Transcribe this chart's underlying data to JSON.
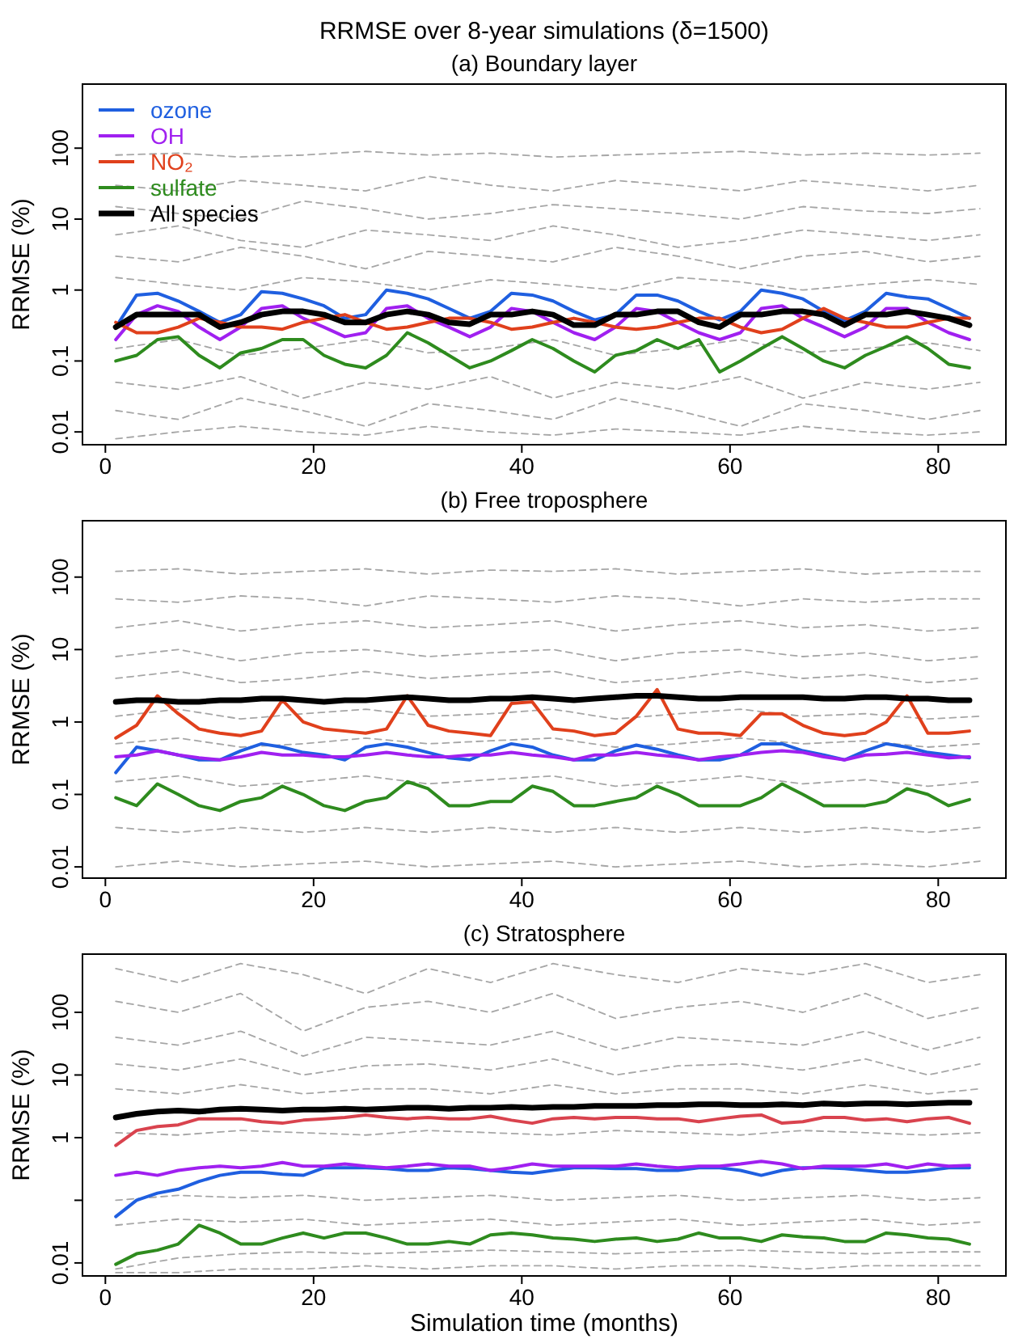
{
  "chart_data": [
    {
      "type": "line",
      "title": "RRMSE over 8-year simulations (δ=1500)",
      "subtitle": "(a) Boundary layer",
      "ylabel": "RRMSE (%)",
      "log": true,
      "legend": "top left",
      "line_style": "solid",
      "xlim": [
        -2.2,
        86.5
      ],
      "xticks": [
        0,
        20,
        40,
        60,
        80
      ],
      "ylim": [
        0.0066,
        800
      ],
      "yticks": [
        0.01,
        0.1,
        1,
        10,
        100
      ],
      "x": [
        1,
        3,
        5,
        7,
        9,
        11,
        13,
        15,
        17,
        19,
        21,
        23,
        25,
        27,
        29,
        31,
        33,
        35,
        37,
        39,
        41,
        43,
        45,
        47,
        49,
        51,
        53,
        55,
        57,
        59,
        61,
        63,
        65,
        67,
        69,
        71,
        73,
        75,
        77,
        79,
        81,
        83
      ],
      "series": [
        {
          "color": "#a6a6a6",
          "line_style": "dashed",
          "x": [
            1,
            7,
            13,
            19,
            25,
            31,
            37,
            43,
            49,
            55,
            61,
            67,
            73,
            79,
            84
          ],
          "values": [
            80,
            85,
            75,
            80,
            90,
            80,
            85,
            75,
            80,
            85,
            90,
            80,
            85,
            80,
            85
          ]
        },
        {
          "color": "#a6a6a6",
          "line_style": "dashed",
          "x": [
            1,
            7,
            13,
            19,
            25,
            31,
            37,
            43,
            49,
            55,
            61,
            67,
            73,
            79,
            84
          ],
          "values": [
            30,
            25,
            35,
            30,
            25,
            40,
            30,
            25,
            35,
            30,
            25,
            35,
            30,
            25,
            30
          ]
        },
        {
          "color": "#a6a6a6",
          "line_style": "dashed",
          "x": [
            1,
            7,
            13,
            19,
            25,
            31,
            37,
            43,
            49,
            55,
            61,
            67,
            73,
            79,
            84
          ],
          "values": [
            15,
            12,
            10,
            18,
            14,
            10,
            12,
            16,
            14,
            12,
            10,
            15,
            13,
            12,
            14
          ]
        },
        {
          "color": "#a6a6a6",
          "line_style": "dashed",
          "x": [
            1,
            7,
            13,
            19,
            25,
            31,
            37,
            43,
            49,
            55,
            61,
            67,
            73,
            79,
            84
          ],
          "values": [
            6,
            8,
            5,
            4,
            7,
            6,
            5,
            8,
            6,
            4,
            5,
            7,
            6,
            5,
            6
          ]
        },
        {
          "color": "#a6a6a6",
          "line_style": "dashed",
          "x": [
            1,
            7,
            13,
            19,
            25,
            31,
            37,
            43,
            49,
            55,
            61,
            67,
            73,
            79,
            84
          ],
          "values": [
            3,
            2.5,
            4,
            3,
            2,
            3.5,
            3,
            2.5,
            4,
            3,
            2,
            3,
            3.5,
            2.5,
            3
          ]
        },
        {
          "color": "#a6a6a6",
          "line_style": "dashed",
          "x": [
            1,
            7,
            13,
            19,
            25,
            31,
            37,
            43,
            49,
            55,
            61,
            67,
            73,
            79,
            84
          ],
          "values": [
            1.5,
            1.2,
            1,
            1.5,
            1.3,
            1,
            1.4,
            1.2,
            1,
            1.5,
            1.3,
            1,
            1.2,
            1.4,
            1.2
          ]
        },
        {
          "color": "#a6a6a6",
          "line_style": "dashed",
          "x": [
            1,
            7,
            13,
            19,
            25,
            31,
            37,
            43,
            49,
            55,
            61,
            67,
            73,
            79,
            84
          ],
          "values": [
            0.15,
            0.2,
            0.12,
            0.15,
            0.2,
            0.13,
            0.15,
            0.2,
            0.12,
            0.15,
            0.2,
            0.13,
            0.15,
            0.18,
            0.14
          ]
        },
        {
          "color": "#a6a6a6",
          "line_style": "dashed",
          "x": [
            1,
            7,
            13,
            19,
            25,
            31,
            37,
            43,
            49,
            55,
            61,
            67,
            73,
            79,
            84
          ],
          "values": [
            0.05,
            0.04,
            0.06,
            0.03,
            0.05,
            0.04,
            0.06,
            0.03,
            0.05,
            0.04,
            0.06,
            0.03,
            0.05,
            0.04,
            0.05
          ]
        },
        {
          "color": "#a6a6a6",
          "line_style": "dashed",
          "x": [
            1,
            7,
            13,
            19,
            25,
            31,
            37,
            43,
            49,
            55,
            61,
            67,
            73,
            79,
            84
          ],
          "values": [
            0.02,
            0.015,
            0.03,
            0.02,
            0.012,
            0.025,
            0.02,
            0.015,
            0.03,
            0.02,
            0.012,
            0.025,
            0.02,
            0.015,
            0.02
          ]
        },
        {
          "color": "#a6a6a6",
          "line_style": "dashed",
          "x": [
            1,
            7,
            13,
            19,
            25,
            31,
            37,
            43,
            49,
            55,
            61,
            67,
            73,
            79,
            84
          ],
          "values": [
            0.008,
            0.01,
            0.012,
            0.01,
            0.009,
            0.012,
            0.01,
            0.009,
            0.011,
            0.01,
            0.009,
            0.012,
            0.01,
            0.009,
            0.01
          ]
        },
        {
          "name": "ozone",
          "color": "#1f5fe0",
          "values": [
            0.3,
            0.85,
            0.9,
            0.7,
            0.5,
            0.35,
            0.45,
            0.95,
            0.9,
            0.75,
            0.6,
            0.4,
            0.45,
            1.0,
            0.9,
            0.75,
            0.55,
            0.4,
            0.5,
            0.9,
            0.85,
            0.7,
            0.5,
            0.38,
            0.45,
            0.85,
            0.85,
            0.7,
            0.5,
            0.38,
            0.5,
            1.0,
            0.9,
            0.75,
            0.5,
            0.37,
            0.5,
            0.9,
            0.8,
            0.75,
            0.55,
            0.4
          ]
        },
        {
          "name": "OH",
          "color": "#a020f0",
          "values": [
            0.2,
            0.45,
            0.6,
            0.5,
            0.3,
            0.2,
            0.3,
            0.55,
            0.6,
            0.4,
            0.3,
            0.22,
            0.25,
            0.55,
            0.6,
            0.4,
            0.3,
            0.22,
            0.3,
            0.55,
            0.5,
            0.35,
            0.25,
            0.2,
            0.3,
            0.55,
            0.5,
            0.35,
            0.25,
            0.2,
            0.25,
            0.55,
            0.6,
            0.4,
            0.3,
            0.22,
            0.3,
            0.55,
            0.55,
            0.35,
            0.25,
            0.2
          ]
        },
        {
          "name": "NO₂",
          "color": "#e0401c",
          "values": [
            0.35,
            0.25,
            0.25,
            0.3,
            0.4,
            0.35,
            0.3,
            0.3,
            0.28,
            0.35,
            0.4,
            0.45,
            0.35,
            0.28,
            0.3,
            0.35,
            0.4,
            0.4,
            0.35,
            0.28,
            0.3,
            0.35,
            0.4,
            0.35,
            0.3,
            0.28,
            0.3,
            0.35,
            0.4,
            0.4,
            0.3,
            0.25,
            0.28,
            0.4,
            0.55,
            0.4,
            0.35,
            0.3,
            0.3,
            0.35,
            0.4,
            0.4
          ]
        },
        {
          "name": "sulfate",
          "color": "#2e8b1e",
          "values": [
            0.1,
            0.12,
            0.2,
            0.22,
            0.12,
            0.08,
            0.13,
            0.15,
            0.2,
            0.2,
            0.12,
            0.09,
            0.08,
            0.12,
            0.25,
            0.18,
            0.12,
            0.08,
            0.1,
            0.14,
            0.2,
            0.15,
            0.1,
            0.07,
            0.12,
            0.14,
            0.2,
            0.15,
            0.2,
            0.07,
            0.1,
            0.15,
            0.22,
            0.15,
            0.1,
            0.08,
            0.12,
            0.16,
            0.22,
            0.15,
            0.09,
            0.08
          ]
        },
        {
          "name": "All species",
          "color": "#000000",
          "values": [
            0.3,
            0.45,
            0.45,
            0.45,
            0.45,
            0.3,
            0.35,
            0.45,
            0.5,
            0.5,
            0.45,
            0.35,
            0.35,
            0.45,
            0.5,
            0.45,
            0.35,
            0.33,
            0.45,
            0.45,
            0.5,
            0.45,
            0.32,
            0.32,
            0.45,
            0.45,
            0.5,
            0.5,
            0.35,
            0.3,
            0.45,
            0.45,
            0.5,
            0.5,
            0.45,
            0.32,
            0.45,
            0.45,
            0.5,
            0.45,
            0.4,
            0.32
          ]
        }
      ]
    },
    {
      "type": "line",
      "title": "(b) Free troposphere",
      "ylabel": "RRMSE (%)",
      "log": true,
      "line_style": "solid",
      "xlim": [
        -2.2,
        86.5
      ],
      "xticks": [
        0,
        20,
        40,
        60,
        80
      ],
      "ylim": [
        0.007,
        600
      ],
      "yticks": [
        0.01,
        0.1,
        1,
        10,
        100
      ],
      "x": [
        1,
        3,
        5,
        7,
        9,
        11,
        13,
        15,
        17,
        19,
        21,
        23,
        25,
        27,
        29,
        31,
        33,
        35,
        37,
        39,
        41,
        43,
        45,
        47,
        49,
        51,
        53,
        55,
        57,
        59,
        61,
        63,
        65,
        67,
        69,
        71,
        73,
        75,
        77,
        79,
        81,
        83
      ],
      "series": [
        {
          "color": "#a6a6a6",
          "line_style": "dashed",
          "x": [
            1,
            7,
            13,
            19,
            25,
            31,
            37,
            43,
            49,
            55,
            61,
            67,
            73,
            79,
            84
          ],
          "values": [
            120,
            130,
            110,
            120,
            130,
            110,
            125,
            120,
            130,
            110,
            120,
            130,
            110,
            120,
            120
          ]
        },
        {
          "color": "#a6a6a6",
          "line_style": "dashed",
          "x": [
            1,
            7,
            13,
            19,
            25,
            31,
            37,
            43,
            49,
            55,
            61,
            67,
            73,
            79,
            84
          ],
          "values": [
            50,
            45,
            55,
            50,
            40,
            55,
            50,
            45,
            55,
            50,
            40,
            50,
            45,
            50,
            50
          ]
        },
        {
          "color": "#a6a6a6",
          "line_style": "dashed",
          "x": [
            1,
            7,
            13,
            19,
            25,
            31,
            37,
            43,
            49,
            55,
            61,
            67,
            73,
            79,
            84
          ],
          "values": [
            20,
            25,
            18,
            22,
            25,
            20,
            22,
            25,
            18,
            22,
            25,
            20,
            22,
            18,
            20
          ]
        },
        {
          "color": "#a6a6a6",
          "line_style": "dashed",
          "x": [
            1,
            7,
            13,
            19,
            25,
            31,
            37,
            43,
            49,
            55,
            61,
            67,
            73,
            79,
            84
          ],
          "values": [
            8,
            10,
            7,
            9,
            10,
            8,
            9,
            10,
            7,
            9,
            10,
            8,
            9,
            7,
            8
          ]
        },
        {
          "color": "#a6a6a6",
          "line_style": "dashed",
          "x": [
            1,
            7,
            13,
            19,
            25,
            31,
            37,
            43,
            49,
            55,
            61,
            67,
            73,
            79,
            84
          ],
          "values": [
            4,
            5,
            3.5,
            4,
            5,
            4,
            4.5,
            5,
            3.5,
            4,
            5,
            4,
            4.5,
            3.5,
            4
          ]
        },
        {
          "color": "#a6a6a6",
          "line_style": "dashed",
          "x": [
            1,
            7,
            13,
            19,
            25,
            31,
            37,
            43,
            49,
            55,
            61,
            67,
            73,
            79,
            84
          ],
          "values": [
            1.2,
            1.5,
            1.1,
            1.3,
            1.5,
            1.2,
            1.3,
            1.5,
            1.1,
            1.3,
            1.5,
            1.2,
            1.3,
            1.1,
            1.2
          ]
        },
        {
          "color": "#a6a6a6",
          "line_style": "dashed",
          "x": [
            1,
            7,
            13,
            19,
            25,
            31,
            37,
            43,
            49,
            55,
            61,
            67,
            73,
            79,
            84
          ],
          "values": [
            0.5,
            0.6,
            0.45,
            0.5,
            0.6,
            0.5,
            0.55,
            0.6,
            0.45,
            0.5,
            0.6,
            0.5,
            0.55,
            0.45,
            0.5
          ]
        },
        {
          "color": "#a6a6a6",
          "line_style": "dashed",
          "x": [
            1,
            7,
            13,
            19,
            25,
            31,
            37,
            43,
            49,
            55,
            61,
            67,
            73,
            79,
            84
          ],
          "values": [
            0.15,
            0.18,
            0.13,
            0.15,
            0.18,
            0.14,
            0.16,
            0.18,
            0.13,
            0.15,
            0.18,
            0.14,
            0.16,
            0.13,
            0.15
          ]
        },
        {
          "color": "#a6a6a6",
          "line_style": "dashed",
          "x": [
            1,
            7,
            13,
            19,
            25,
            31,
            37,
            43,
            49,
            55,
            61,
            67,
            73,
            79,
            84
          ],
          "values": [
            0.035,
            0.03,
            0.035,
            0.03,
            0.035,
            0.03,
            0.035,
            0.03,
            0.035,
            0.03,
            0.035,
            0.03,
            0.035,
            0.03,
            0.035
          ]
        },
        {
          "color": "#a6a6a6",
          "line_style": "dashed",
          "x": [
            1,
            7,
            13,
            19,
            25,
            31,
            37,
            43,
            49,
            55,
            61,
            67,
            73,
            79,
            84
          ],
          "values": [
            0.01,
            0.012,
            0.01,
            0.011,
            0.012,
            0.01,
            0.011,
            0.012,
            0.01,
            0.011,
            0.012,
            0.01,
            0.011,
            0.01,
            0.012
          ]
        },
        {
          "color": "#e0401c",
          "values": [
            0.6,
            0.9,
            2.3,
            1.3,
            0.8,
            0.7,
            0.65,
            0.75,
            2.0,
            1.0,
            0.8,
            0.75,
            0.7,
            0.8,
            2.3,
            0.9,
            0.75,
            0.7,
            0.65,
            1.8,
            1.9,
            0.8,
            0.75,
            0.65,
            0.7,
            1.2,
            2.8,
            0.8,
            0.7,
            0.7,
            0.65,
            1.3,
            1.3,
            0.9,
            0.7,
            0.65,
            0.7,
            1.0,
            2.3,
            0.7,
            0.7,
            0.75
          ]
        },
        {
          "color": "#1f5fe0",
          "values": [
            0.2,
            0.45,
            0.4,
            0.35,
            0.3,
            0.3,
            0.4,
            0.5,
            0.45,
            0.38,
            0.35,
            0.3,
            0.45,
            0.5,
            0.45,
            0.38,
            0.32,
            0.3,
            0.4,
            0.5,
            0.45,
            0.35,
            0.3,
            0.3,
            0.4,
            0.48,
            0.42,
            0.35,
            0.3,
            0.3,
            0.35,
            0.5,
            0.5,
            0.4,
            0.35,
            0.3,
            0.4,
            0.5,
            0.45,
            0.38,
            0.35,
            0.32
          ]
        },
        {
          "color": "#a020f0",
          "values": [
            0.33,
            0.35,
            0.4,
            0.35,
            0.32,
            0.3,
            0.33,
            0.38,
            0.35,
            0.35,
            0.33,
            0.33,
            0.35,
            0.38,
            0.35,
            0.33,
            0.33,
            0.35,
            0.35,
            0.38,
            0.35,
            0.33,
            0.3,
            0.35,
            0.35,
            0.38,
            0.35,
            0.33,
            0.3,
            0.33,
            0.35,
            0.38,
            0.4,
            0.38,
            0.33,
            0.3,
            0.35,
            0.36,
            0.38,
            0.35,
            0.32,
            0.33
          ]
        },
        {
          "color": "#2e8b1e",
          "values": [
            0.09,
            0.07,
            0.14,
            0.1,
            0.07,
            0.06,
            0.08,
            0.09,
            0.13,
            0.1,
            0.07,
            0.06,
            0.08,
            0.09,
            0.15,
            0.12,
            0.07,
            0.07,
            0.08,
            0.08,
            0.13,
            0.11,
            0.07,
            0.07,
            0.08,
            0.09,
            0.13,
            0.1,
            0.07,
            0.07,
            0.07,
            0.09,
            0.14,
            0.1,
            0.07,
            0.07,
            0.07,
            0.08,
            0.12,
            0.1,
            0.07,
            0.085
          ]
        },
        {
          "color": "#000000",
          "values": [
            1.9,
            2.0,
            2.0,
            1.9,
            1.9,
            2.0,
            2.0,
            2.1,
            2.1,
            2.0,
            1.9,
            2.0,
            2.0,
            2.1,
            2.2,
            2.1,
            2.0,
            2.0,
            2.1,
            2.1,
            2.2,
            2.1,
            2.0,
            2.1,
            2.2,
            2.3,
            2.3,
            2.2,
            2.1,
            2.1,
            2.2,
            2.2,
            2.2,
            2.2,
            2.1,
            2.1,
            2.2,
            2.2,
            2.1,
            2.1,
            2.0,
            2.0
          ]
        }
      ]
    },
    {
      "type": "line",
      "title": "(c) Stratosphere",
      "xlabel": "Simulation time (months)",
      "ylabel": "RRMSE (%)",
      "log": true,
      "line_style": "solid",
      "xlim": [
        -2.2,
        86.5
      ],
      "xticks": [
        0,
        20,
        40,
        60,
        80
      ],
      "ylim": [
        0.0062,
        850
      ],
      "yticks": [
        0.01,
        {
          "value": 0.1,
          "label": null
        },
        1,
        10,
        100
      ],
      "x": [
        1,
        3,
        5,
        7,
        9,
        11,
        13,
        15,
        17,
        19,
        21,
        23,
        25,
        27,
        29,
        31,
        33,
        35,
        37,
        39,
        41,
        43,
        45,
        47,
        49,
        51,
        53,
        55,
        57,
        59,
        61,
        63,
        65,
        67,
        69,
        71,
        73,
        75,
        77,
        79,
        81,
        83
      ],
      "series": [
        {
          "color": "#a6a6a6",
          "line_style": "dashed",
          "x": [
            1,
            7,
            13,
            19,
            25,
            31,
            37,
            43,
            49,
            55,
            61,
            67,
            73,
            79,
            84
          ],
          "values": [
            500,
            300,
            600,
            400,
            200,
            500,
            300,
            600,
            400,
            300,
            500,
            400,
            600,
            300,
            400
          ]
        },
        {
          "color": "#a6a6a6",
          "line_style": "dashed",
          "x": [
            1,
            7,
            13,
            19,
            25,
            31,
            37,
            43,
            49,
            55,
            61,
            67,
            73,
            79,
            84
          ],
          "values": [
            150,
            100,
            200,
            50,
            120,
            150,
            100,
            200,
            80,
            120,
            150,
            100,
            200,
            80,
            120
          ]
        },
        {
          "color": "#a6a6a6",
          "line_style": "dashed",
          "x": [
            1,
            7,
            13,
            19,
            25,
            31,
            37,
            43,
            49,
            55,
            61,
            67,
            73,
            79,
            84
          ],
          "values": [
            40,
            30,
            50,
            20,
            40,
            35,
            30,
            50,
            25,
            40,
            35,
            30,
            50,
            25,
            40
          ]
        },
        {
          "color": "#a6a6a6",
          "line_style": "dashed",
          "x": [
            1,
            7,
            13,
            19,
            25,
            31,
            37,
            43,
            49,
            55,
            61,
            67,
            73,
            79,
            84
          ],
          "values": [
            15,
            12,
            18,
            10,
            14,
            15,
            12,
            18,
            10,
            14,
            15,
            12,
            18,
            10,
            15
          ]
        },
        {
          "color": "#a6a6a6",
          "line_style": "dashed",
          "x": [
            1,
            7,
            13,
            19,
            25,
            31,
            37,
            43,
            49,
            55,
            61,
            67,
            73,
            79,
            84
          ],
          "values": [
            6,
            5,
            7,
            5,
            6,
            6,
            5,
            7,
            5,
            6,
            6,
            5,
            7,
            5,
            6
          ]
        },
        {
          "color": "#a6a6a6",
          "line_style": "dashed",
          "x": [
            1,
            7,
            13,
            19,
            25,
            31,
            37,
            43,
            49,
            55,
            61,
            67,
            73,
            79,
            84
          ],
          "values": [
            1.2,
            1.1,
            1.3,
            1.2,
            1.1,
            1.3,
            1.2,
            1.1,
            1.3,
            1.2,
            1.1,
            1.3,
            1.2,
            1.1,
            1.2
          ]
        },
        {
          "color": "#a6a6a6",
          "line_style": "dashed",
          "x": [
            1,
            7,
            13,
            19,
            25,
            31,
            37,
            43,
            49,
            55,
            61,
            67,
            73,
            79,
            84
          ],
          "values": [
            0.1,
            0.12,
            0.11,
            0.12,
            0.1,
            0.11,
            0.12,
            0.1,
            0.11,
            0.12,
            0.1,
            0.11,
            0.12,
            0.1,
            0.11
          ]
        },
        {
          "color": "#a6a6a6",
          "line_style": "dashed",
          "x": [
            1,
            7,
            13,
            19,
            25,
            31,
            37,
            43,
            49,
            55,
            61,
            67,
            73,
            79,
            84
          ],
          "values": [
            0.04,
            0.05,
            0.045,
            0.05,
            0.04,
            0.045,
            0.05,
            0.04,
            0.045,
            0.05,
            0.04,
            0.045,
            0.05,
            0.04,
            0.045
          ]
        },
        {
          "color": "#a6a6a6",
          "line_style": "dashed",
          "x": [
            1,
            7,
            13,
            19,
            25,
            31,
            37,
            43,
            49,
            55,
            61,
            67,
            73,
            79,
            84
          ],
          "values": [
            0.008,
            0.012,
            0.014,
            0.015,
            0.014,
            0.015,
            0.016,
            0.015,
            0.014,
            0.015,
            0.016,
            0.015,
            0.014,
            0.015,
            0.015
          ]
        },
        {
          "color": "#a6a6a6",
          "line_style": "dashed",
          "x": [
            1,
            7,
            13,
            19,
            25,
            31,
            37,
            43,
            49,
            55,
            61,
            67,
            73,
            79,
            84
          ],
          "values": [
            0.007,
            0.007,
            0.008,
            0.008,
            0.009,
            0.008,
            0.009,
            0.009,
            0.008,
            0.009,
            0.009,
            0.008,
            0.009,
            0.009,
            0.009
          ]
        },
        {
          "color": "#1f5fe0",
          "values": [
            0.055,
            0.1,
            0.13,
            0.15,
            0.2,
            0.25,
            0.28,
            0.28,
            0.26,
            0.25,
            0.33,
            0.33,
            0.33,
            0.32,
            0.3,
            0.3,
            0.33,
            0.32,
            0.3,
            0.28,
            0.27,
            0.3,
            0.33,
            0.33,
            0.32,
            0.32,
            0.3,
            0.3,
            0.33,
            0.33,
            0.3,
            0.25,
            0.3,
            0.33,
            0.33,
            0.32,
            0.3,
            0.28,
            0.28,
            0.3,
            0.33,
            0.33
          ]
        },
        {
          "color": "#a020f0",
          "values": [
            0.25,
            0.28,
            0.25,
            0.3,
            0.33,
            0.35,
            0.33,
            0.35,
            0.4,
            0.35,
            0.35,
            0.38,
            0.35,
            0.33,
            0.35,
            0.38,
            0.35,
            0.35,
            0.3,
            0.33,
            0.38,
            0.35,
            0.35,
            0.35,
            0.35,
            0.38,
            0.35,
            0.33,
            0.35,
            0.35,
            0.38,
            0.42,
            0.38,
            0.32,
            0.35,
            0.35,
            0.35,
            0.38,
            0.33,
            0.38,
            0.35,
            0.36
          ]
        },
        {
          "color": "#d9434e",
          "values": [
            0.75,
            1.3,
            1.5,
            1.6,
            2.0,
            2.0,
            2.0,
            1.8,
            1.7,
            1.9,
            2.0,
            2.1,
            2.3,
            2.1,
            2.0,
            2.1,
            2.0,
            2.0,
            2.2,
            1.9,
            1.7,
            2.0,
            2.1,
            2.0,
            2.1,
            2.1,
            2.0,
            2.0,
            1.8,
            2.0,
            2.2,
            2.3,
            1.7,
            1.8,
            2.1,
            2.1,
            1.9,
            2.0,
            1.8,
            2.0,
            2.1,
            1.7
          ]
        },
        {
          "color": "#2e8b1e",
          "values": [
            0.0095,
            0.014,
            0.016,
            0.02,
            0.04,
            0.03,
            0.02,
            0.02,
            0.025,
            0.03,
            0.025,
            0.03,
            0.03,
            0.025,
            0.02,
            0.02,
            0.022,
            0.02,
            0.028,
            0.03,
            0.028,
            0.025,
            0.024,
            0.022,
            0.024,
            0.025,
            0.022,
            0.024,
            0.03,
            0.025,
            0.025,
            0.022,
            0.028,
            0.026,
            0.025,
            0.022,
            0.022,
            0.03,
            0.028,
            0.025,
            0.024,
            0.02
          ]
        },
        {
          "color": "#000000",
          "values": [
            2.1,
            2.4,
            2.6,
            2.7,
            2.6,
            2.8,
            2.9,
            2.8,
            2.7,
            2.8,
            2.8,
            2.9,
            2.8,
            2.9,
            3.0,
            3.0,
            2.9,
            3.0,
            3.0,
            3.1,
            3.0,
            3.1,
            3.1,
            3.2,
            3.2,
            3.2,
            3.3,
            3.3,
            3.4,
            3.4,
            3.3,
            3.3,
            3.4,
            3.3,
            3.5,
            3.4,
            3.5,
            3.5,
            3.4,
            3.5,
            3.6,
            3.6
          ]
        }
      ]
    }
  ]
}
